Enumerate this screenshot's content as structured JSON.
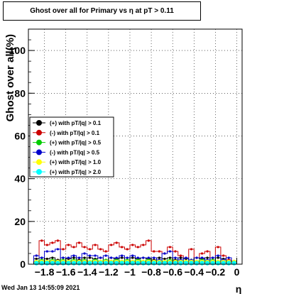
{
  "title": "Ghost over all for Primary vs   η at pT > 0.11",
  "timestamp": "Wed Jan 13 14:55:09 2021",
  "chart_data": {
    "type": "bar",
    "title": "Ghost over all for Primary vs   η at pT > 0.11",
    "xlabel": "η",
    "ylabel": "Ghost over all(%)",
    "xlim": [
      -1.95,
      0.05
    ],
    "ylim": [
      0,
      110
    ],
    "grid": true,
    "legend_position": "middle-left",
    "x_ticks": [
      -1.8,
      -1.6,
      -1.4,
      -1.2,
      -1,
      -0.8,
      -0.6,
      -0.4,
      -0.2,
      0
    ],
    "x_tick_labels": [
      "−1.8",
      "−1.6",
      "−1.4",
      "−1.2",
      "−1",
      "−0.8",
      "−0.6",
      "−0.4",
      "−0.2",
      "0"
    ],
    "y_ticks": [
      0,
      20,
      40,
      60,
      80,
      100
    ],
    "y_tick_labels": [
      "0",
      "20",
      "40",
      "60",
      "80",
      "100"
    ],
    "bin_edges": [
      -1.9,
      -1.85,
      -1.8,
      -1.75,
      -1.7,
      -1.65,
      -1.6,
      -1.55,
      -1.5,
      -1.45,
      -1.4,
      -1.35,
      -1.3,
      -1.25,
      -1.2,
      -1.15,
      -1.1,
      -1.05,
      -1.0,
      -0.95,
      -0.9,
      -0.85,
      -0.8,
      -0.75,
      -0.7,
      -0.65,
      -0.6,
      -0.55,
      -0.5,
      -0.45,
      -0.4,
      -0.35,
      -0.3,
      -0.25,
      -0.2,
      -0.15,
      -0.1,
      -0.05,
      0.0
    ],
    "series": [
      {
        "name": "(+) with pT/|q| > 0.1",
        "color": "#000000",
        "style": "step",
        "values": [
          2.5,
          3,
          2.5,
          3,
          2,
          3,
          2.5,
          3,
          2,
          3,
          3,
          2.5,
          3,
          2,
          3,
          2.5,
          3,
          2,
          3,
          2.5,
          3,
          2.5,
          2,
          3,
          2.5,
          3,
          2,
          3,
          2.5,
          2,
          3,
          2.5,
          3,
          2,
          3,
          2.5,
          2,
          1.5
        ]
      },
      {
        "name": "(-) with pT/|q| > 0.1",
        "color": "#cc0000",
        "style": "step",
        "values": [
          4,
          11,
          9,
          10,
          11,
          7,
          9,
          8,
          10,
          8,
          7,
          9,
          7,
          6,
          9,
          10,
          8,
          7,
          9,
          8,
          9,
          11,
          6,
          6,
          5,
          8,
          6,
          4,
          3,
          7,
          3,
          5,
          6,
          3,
          8,
          4,
          2,
          1
        ]
      },
      {
        "name": "(+) with pT/|q| > 0.5",
        "color": "#00cc00",
        "style": "step",
        "values": [
          1.5,
          2,
          1.5,
          2,
          1.5,
          2,
          1.5,
          2,
          1.5,
          2,
          1.5,
          2,
          1.5,
          2,
          1.5,
          2,
          1.5,
          2,
          1.5,
          2,
          1.5,
          2,
          1.5,
          2,
          1.5,
          2,
          1.5,
          2,
          1.5,
          2,
          1.5,
          2,
          1.5,
          2,
          1.5,
          2,
          1.5,
          1
        ]
      },
      {
        "name": "(-) with pT/|q| > 0.5",
        "color": "#0000cc",
        "style": "step",
        "values": [
          4,
          3,
          6,
          6,
          7,
          3,
          3,
          4,
          3,
          5,
          4,
          4,
          3,
          4,
          3,
          3,
          4,
          3,
          4,
          3,
          3,
          3,
          3,
          2,
          5,
          6,
          3,
          2,
          3,
          2,
          3,
          3,
          2,
          3,
          4,
          2,
          3,
          1
        ]
      },
      {
        "name": "(+) with pT/|q| > 1.0",
        "color": "#ffff00",
        "style": "marker",
        "values": [
          1,
          1,
          1,
          1,
          1,
          1,
          1,
          1,
          1,
          1,
          1,
          1,
          1,
          1,
          1,
          1,
          1,
          1,
          1,
          1,
          1,
          1,
          1,
          1,
          1,
          1,
          1,
          1,
          1,
          1,
          1,
          1,
          1,
          1,
          1,
          1,
          1,
          1
        ]
      },
      {
        "name": "(+) with pT/|q| > 2.0",
        "color": "#00ffff",
        "style": "marker",
        "values": [
          0.5,
          0.5,
          0.5,
          0.5,
          0.5,
          0.5,
          0.5,
          0.5,
          0.5,
          0.5,
          0.5,
          0.5,
          0.5,
          0.5,
          0.5,
          0.5,
          0.5,
          0.5,
          0.5,
          0.5,
          0.5,
          0.5,
          0.5,
          0.5,
          0.5,
          0.5,
          0.5,
          0.5,
          0.5,
          0.5,
          0.5,
          0.5,
          0.5,
          0.5,
          0.5,
          0.5,
          0.5,
          0.5
        ]
      }
    ]
  }
}
